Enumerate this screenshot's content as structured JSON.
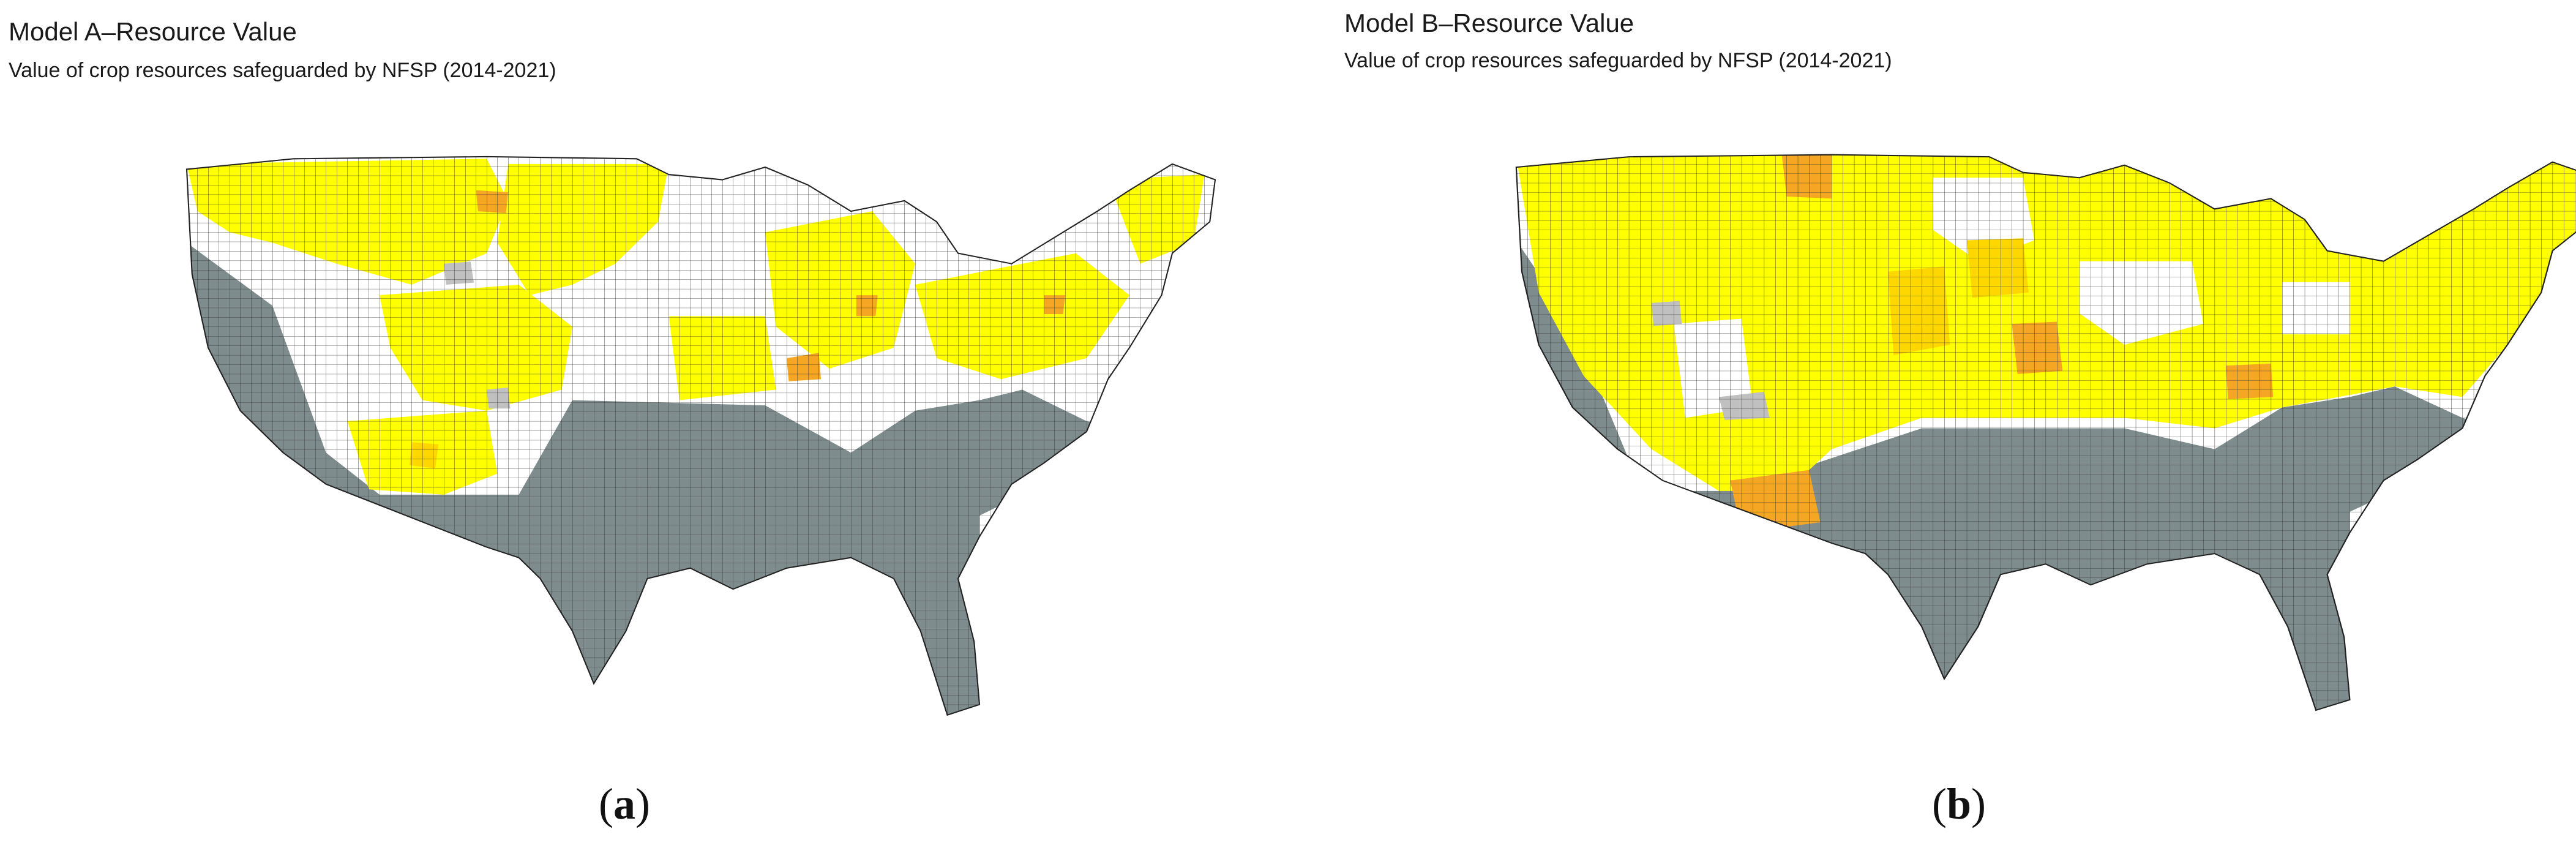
{
  "panels": [
    {
      "title": "Model A–Resource Value",
      "subtitle": "Value of crop resources safeguarded by NFSP (2014-2021)",
      "label_open": "(",
      "label_letter": "a",
      "label_close": ")"
    },
    {
      "title": "Model B–Resource Value",
      "subtitle": "Value of crop resources safeguarded by NFSP (2014-2021)",
      "label_open": "(",
      "label_letter": "b",
      "label_close": ")"
    }
  ],
  "colors": {
    "protected_low": "#ffff00",
    "protected_mid": "#ffd700",
    "protected_high": "#f5a623",
    "no_value": "#ffffff",
    "excluded": "#7f8c8d",
    "no_data": "#c0c0c0",
    "county_border": "#333333"
  }
}
